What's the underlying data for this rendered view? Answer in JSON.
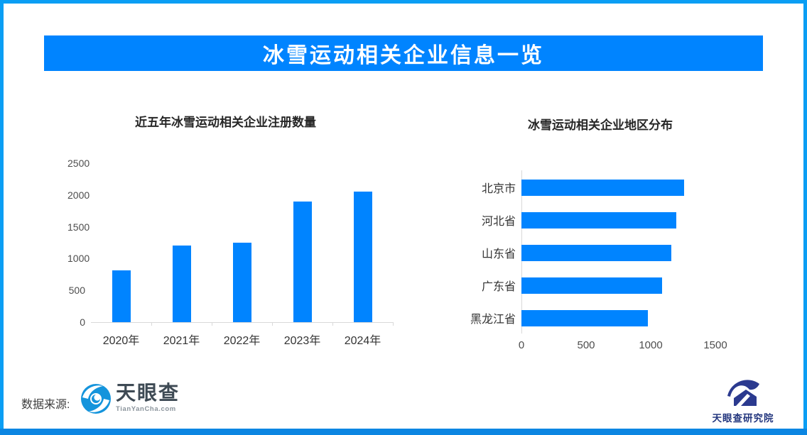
{
  "banner": {
    "title": "冰雪运动相关企业信息一览"
  },
  "colors": {
    "accent": "#0084ff",
    "frame": "#0a9ef4",
    "bottom_bar": "#0c86e2",
    "axis_gray": "#d9d9d9",
    "logo_blue": "#1494dc",
    "institute_navy": "#2b3a8f"
  },
  "chart_data": [
    {
      "type": "bar",
      "orientation": "vertical",
      "title": "近五年冰雪运动相关企业注册数量",
      "categories": [
        "2020年",
        "2021年",
        "2022年",
        "2023年",
        "2024年"
      ],
      "values": [
        810,
        1200,
        1250,
        1900,
        2050
      ],
      "ylim": [
        0,
        2500
      ],
      "yticks": [
        0,
        500,
        1000,
        1500,
        2000,
        2500
      ],
      "grid": false,
      "bar_color": "#0084ff"
    },
    {
      "type": "bar",
      "orientation": "horizontal",
      "title": "冰雪运动相关企业地区分布",
      "categories": [
        "北京市",
        "河北省",
        "山东省",
        "广东省",
        "黑龙江省"
      ],
      "values": [
        1260,
        1200,
        1160,
        1090,
        980
      ],
      "xlim": [
        0,
        1900
      ],
      "xticks": [
        0,
        500,
        1000,
        1500
      ],
      "grid": false,
      "bar_color": "#0084ff"
    }
  ],
  "footer": {
    "source_label": "数据来源:",
    "tyc_name": "天眼查",
    "tyc_domain": "TianYanCha.com",
    "institute_name": "天眼查研究院"
  }
}
